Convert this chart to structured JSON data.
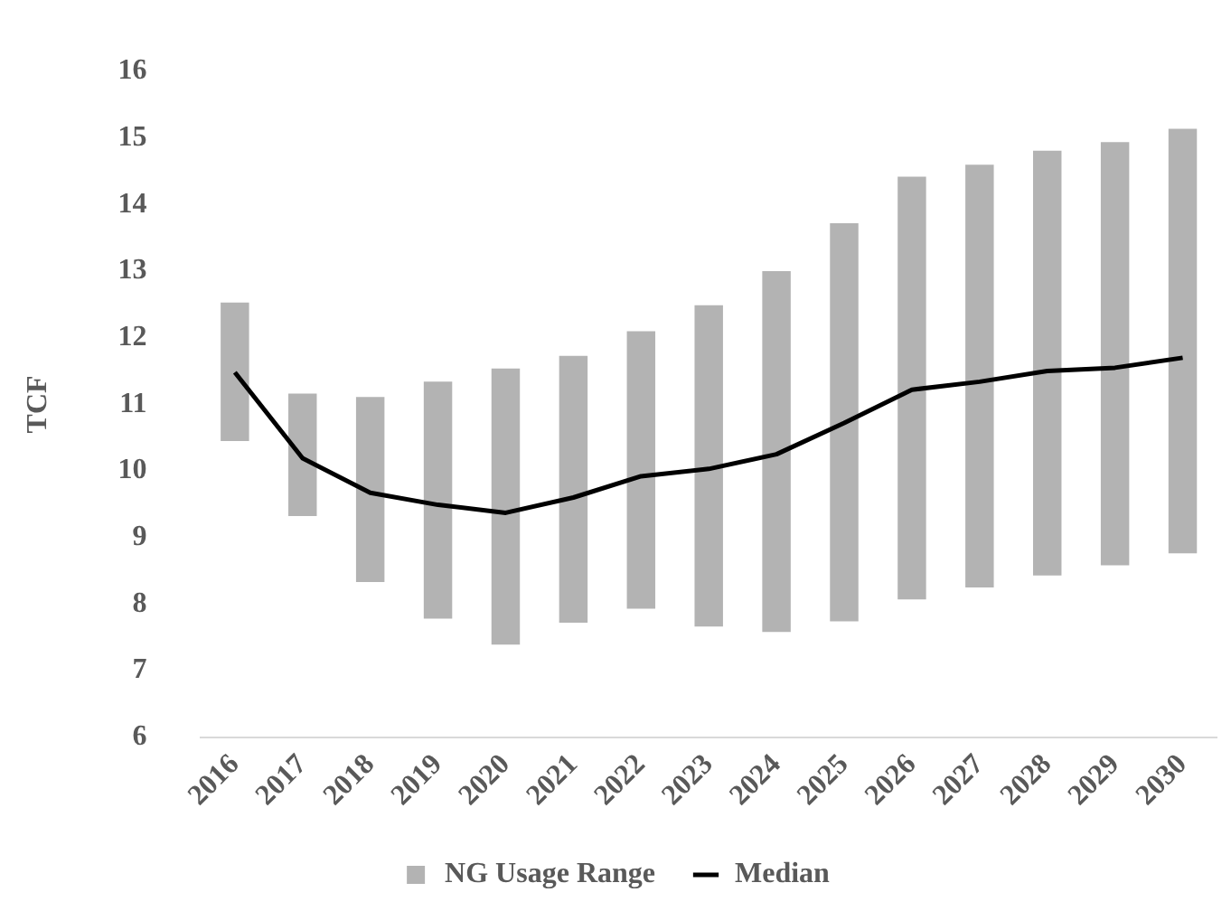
{
  "chart_data": {
    "type": "bar",
    "ylabel": "TCF",
    "categories": [
      "2016",
      "2017",
      "2018",
      "2019",
      "2020",
      "2021",
      "2022",
      "2023",
      "2024",
      "2025",
      "2026",
      "2027",
      "2028",
      "2029",
      "2030"
    ],
    "series": [
      {
        "name": "NG Usage Range",
        "color": "#b3b3b3",
        "base": [
          10.45,
          9.32,
          8.33,
          7.78,
          7.39,
          7.72,
          7.93,
          7.66,
          7.58,
          7.74,
          8.07,
          8.25,
          8.43,
          8.58,
          8.76
        ],
        "values": [
          2.08,
          1.84,
          2.78,
          3.56,
          4.15,
          4.01,
          4.17,
          4.83,
          5.42,
          5.98,
          6.35,
          6.35,
          6.38,
          6.36,
          6.38
        ]
      },
      {
        "name": "Median",
        "type": "line",
        "color": "#000000",
        "values": [
          11.48,
          10.19,
          9.67,
          9.49,
          9.37,
          9.6,
          9.92,
          10.03,
          10.25,
          10.72,
          11.22,
          11.34,
          11.5,
          11.55,
          11.7
        ]
      }
    ],
    "ylim": [
      6,
      16
    ],
    "yticks": [
      6,
      7,
      8,
      9,
      10,
      11,
      12,
      13,
      14,
      15,
      16
    ],
    "grid": false,
    "legend": "bottom",
    "marker": "none"
  }
}
